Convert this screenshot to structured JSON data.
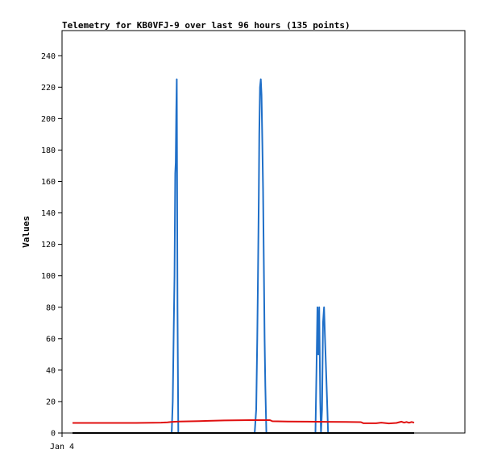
{
  "chart_data": {
    "type": "line",
    "title": "Telemetry for KB0VFJ-9 over last 96 hours (135 points)",
    "xlabel": "",
    "ylabel": "Values",
    "x_tick_labels": [
      "Jan 4"
    ],
    "y_ticks": [
      0,
      20,
      40,
      60,
      80,
      100,
      120,
      140,
      160,
      180,
      200,
      220,
      240
    ],
    "ylim": [
      0,
      256
    ],
    "xlim": [
      0,
      135
    ],
    "grid": false,
    "legend": "none",
    "series": [
      {
        "color": "#1f6fc8",
        "points": [
          [
            0,
            0
          ],
          [
            39.2,
            0
          ],
          [
            39.6,
            20
          ],
          [
            40.0,
            65
          ],
          [
            40.3,
            100
          ],
          [
            40.6,
            165
          ],
          [
            40.8,
            172
          ],
          [
            41.0,
            205
          ],
          [
            41.2,
            225
          ],
          [
            41.5,
            80
          ],
          [
            41.8,
            0
          ],
          [
            72,
            0
          ],
          [
            72.6,
            15
          ],
          [
            73.0,
            60
          ],
          [
            73.3,
            100
          ],
          [
            73.6,
            150
          ],
          [
            73.8,
            190
          ],
          [
            74.1,
            220
          ],
          [
            74.4,
            225
          ],
          [
            74.7,
            215
          ],
          [
            75.0,
            185
          ],
          [
            75.3,
            155
          ],
          [
            75.6,
            110
          ],
          [
            75.9,
            60
          ],
          [
            76.2,
            30
          ],
          [
            76.6,
            0
          ],
          [
            96,
            0
          ],
          [
            96.4,
            40
          ],
          [
            96.8,
            80
          ],
          [
            97.1,
            50
          ],
          [
            97.5,
            80
          ],
          [
            97.9,
            20
          ],
          [
            98.2,
            0
          ],
          [
            98.6,
            15
          ],
          [
            99.0,
            70
          ],
          [
            99.4,
            80
          ],
          [
            99.8,
            60
          ],
          [
            100.2,
            40
          ],
          [
            100.6,
            20
          ],
          [
            101.0,
            0
          ],
          [
            135,
            0
          ]
        ]
      },
      {
        "color": "#e01010",
        "points": [
          [
            0,
            6.4
          ],
          [
            25,
            6.4
          ],
          [
            35,
            6.6
          ],
          [
            37.5,
            6.8
          ],
          [
            39,
            7.0
          ],
          [
            42,
            7.3
          ],
          [
            50,
            7.6
          ],
          [
            60,
            8.0
          ],
          [
            70,
            8.2
          ],
          [
            78,
            8.2
          ],
          [
            79,
            7.5
          ],
          [
            85,
            7.3
          ],
          [
            92,
            7.2
          ],
          [
            100,
            7.1
          ],
          [
            108,
            7.0
          ],
          [
            114,
            6.9
          ],
          [
            115,
            6.2
          ],
          [
            120,
            6.2
          ],
          [
            122,
            6.6
          ],
          [
            125,
            6.1
          ],
          [
            128,
            6.4
          ],
          [
            130,
            7.2
          ],
          [
            131,
            6.6
          ],
          [
            132,
            7.0
          ],
          [
            133,
            6.5
          ],
          [
            134,
            7.0
          ],
          [
            135,
            6.6
          ]
        ]
      },
      {
        "color": "#000000",
        "points": [
          [
            0,
            0
          ],
          [
            135,
            0
          ]
        ]
      }
    ]
  }
}
